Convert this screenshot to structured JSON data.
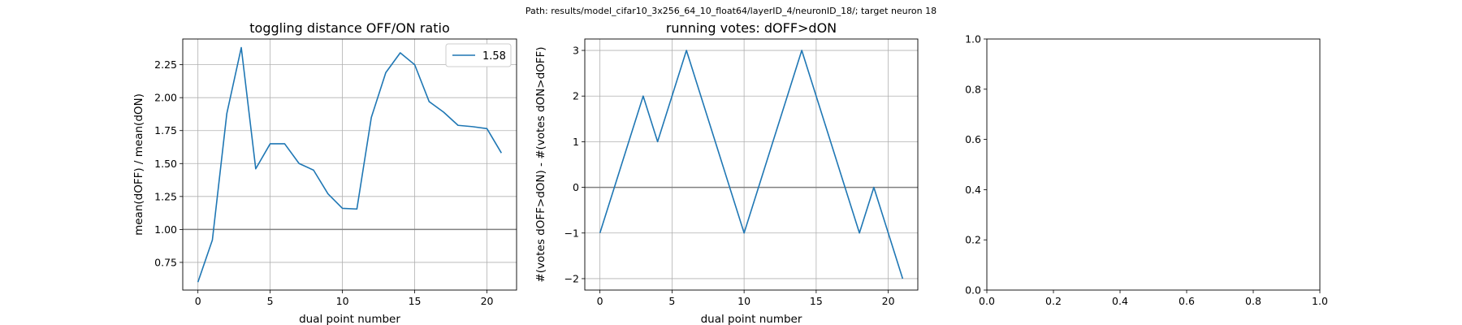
{
  "figure": {
    "suptitle": "Path: results/model_cifar10_3x256_64_10_float64/layerID_4/neuronID_18/; target neuron 18"
  },
  "chart_data": [
    {
      "type": "line",
      "title": "toggling distance OFF/ON ratio",
      "xlabel": "dual point number",
      "ylabel": "mean(dOFF) / mean(dON)",
      "xlim": [
        -1.05,
        22.05
      ],
      "ylim": [
        0.54,
        2.445
      ],
      "xticks": [
        0,
        5,
        10,
        15,
        20
      ],
      "xtick_labels": [
        "0",
        "5",
        "10",
        "15",
        "20"
      ],
      "yticks": [
        0.75,
        1.0,
        1.25,
        1.5,
        1.75,
        2.0,
        2.25
      ],
      "ytick_labels": [
        "0.75",
        "1.00",
        "1.25",
        "1.50",
        "1.75",
        "2.00",
        "2.25"
      ],
      "grid": true,
      "reference_line": 1.0,
      "legend": {
        "position": "upper right",
        "entries": [
          "1.58"
        ]
      },
      "series": [
        {
          "name": "1.58",
          "color": "#1f77b4",
          "x": [
            0,
            1,
            2,
            3,
            4,
            5,
            6,
            7,
            8,
            9,
            10,
            11,
            12,
            13,
            14,
            15,
            16,
            17,
            18,
            19,
            20,
            21
          ],
          "y": [
            0.6,
            0.92,
            1.88,
            2.38,
            1.46,
            1.65,
            1.65,
            1.5,
            1.45,
            1.27,
            1.16,
            1.155,
            1.85,
            2.19,
            2.34,
            2.25,
            1.97,
            1.89,
            1.79,
            1.78,
            1.765,
            1.58
          ]
        }
      ]
    },
    {
      "type": "line",
      "title": "running votes: dOFF>dON",
      "xlabel": "dual point number",
      "ylabel": "#(votes dOFF>dON) - #(votes dON>dOFF)",
      "xlim": [
        -1.05,
        22.05
      ],
      "ylim": [
        -2.25,
        3.25
      ],
      "xticks": [
        0,
        5,
        10,
        15,
        20
      ],
      "xtick_labels": [
        "0",
        "5",
        "10",
        "15",
        "20"
      ],
      "yticks": [
        -2,
        -1,
        0,
        1,
        2,
        3
      ],
      "ytick_labels": [
        "−2",
        "−1",
        "0",
        "1",
        "2",
        "3"
      ],
      "grid": true,
      "reference_line": 0,
      "series": [
        {
          "color": "#1f77b4",
          "x": [
            0,
            1,
            2,
            3,
            4,
            5,
            6,
            7,
            8,
            9,
            10,
            11,
            12,
            13,
            14,
            15,
            16,
            17,
            18,
            19,
            20,
            21
          ],
          "y": [
            -1,
            0,
            1,
            2,
            1,
            2,
            3,
            2,
            1,
            0,
            -1,
            0,
            1,
            2,
            3,
            2,
            1,
            0,
            -1,
            0,
            -1,
            -2
          ]
        }
      ]
    },
    {
      "type": "line",
      "title": "",
      "xlabel": "",
      "ylabel": "",
      "xlim": [
        0,
        1
      ],
      "ylim": [
        0,
        1
      ],
      "xticks": [
        0,
        0.2,
        0.4,
        0.6,
        0.8,
        1.0
      ],
      "xtick_labels": [
        "0.0",
        "0.2",
        "0.4",
        "0.6",
        "0.8",
        "1.0"
      ],
      "yticks": [
        0,
        0.2,
        0.4,
        0.6,
        0.8,
        1.0
      ],
      "ytick_labels": [
        "0.0",
        "0.2",
        "0.4",
        "0.6",
        "0.8",
        "1.0"
      ],
      "grid": false,
      "series": []
    }
  ]
}
